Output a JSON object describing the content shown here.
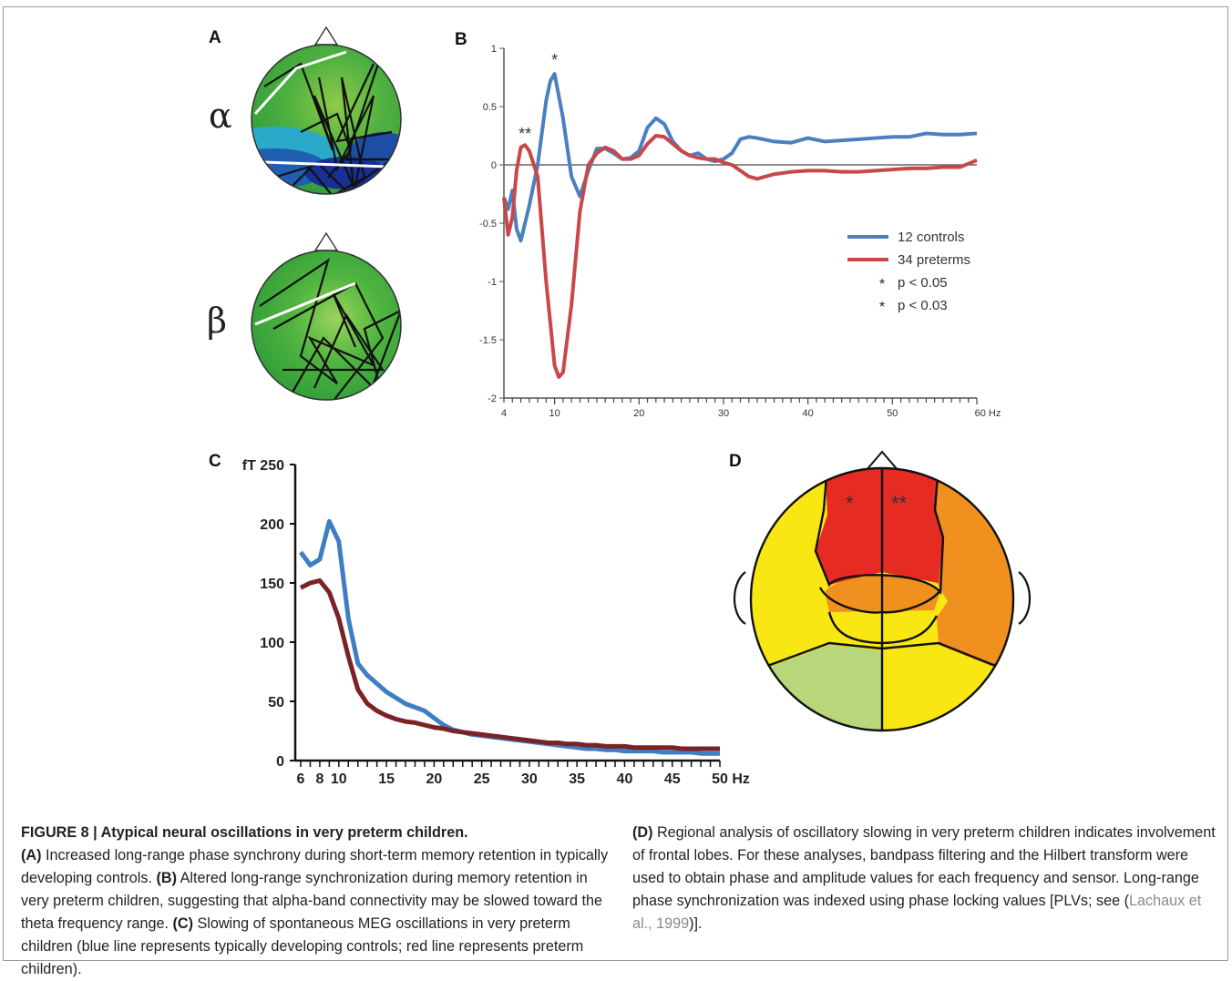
{
  "panels": {
    "a": {
      "letter": "A",
      "alpha": "α",
      "beta": "β"
    },
    "b": {
      "letter": "B"
    },
    "c": {
      "letter": "C"
    },
    "d": {
      "letter": "D",
      "left_star": "*",
      "right_star": "**"
    }
  },
  "colors": {
    "controls": "#4a80c0",
    "preterms": "#c8484a",
    "c_controls": "#3e7fc4",
    "c_preterms": "#7a2224",
    "red_region": "#e52b22",
    "orange_region": "#f0901e",
    "yellow_region": "#f8e712",
    "light_green_region": "#b8d67a"
  },
  "chart_data": [
    {
      "type": "line",
      "panel": "B",
      "x_ticks": [
        "4",
        "10",
        "20",
        "30",
        "40",
        "50",
        "60 Hz"
      ],
      "y_ticks": [
        "1",
        "0.5",
        "0",
        "-0.5",
        "-1",
        "-1.5",
        "-2"
      ],
      "xlim": [
        4,
        60
      ],
      "ylim": [
        -2,
        1
      ],
      "legend": [
        "12 controls",
        "34 preterms",
        "p < 0.05",
        "p < 0.03"
      ],
      "legend_marks": [
        "*",
        "*"
      ],
      "annotations": [
        {
          "x": 10,
          "y": 0.85,
          "text": "*"
        },
        {
          "x": 6.5,
          "y": 0.22,
          "text": "**"
        }
      ],
      "series": [
        {
          "name": "12 controls",
          "x": [
            4,
            4.5,
            5,
            5.5,
            6,
            7,
            8,
            9,
            9.5,
            10,
            11,
            12,
            13,
            14,
            15,
            16,
            17,
            18,
            19,
            20,
            21,
            22,
            23,
            24,
            25,
            26,
            27,
            28,
            29,
            30,
            31,
            32,
            33,
            34,
            36,
            38,
            40,
            42,
            44,
            46,
            48,
            50,
            52,
            54,
            56,
            58,
            60
          ],
          "values": [
            -0.28,
            -0.38,
            -0.22,
            -0.55,
            -0.65,
            -0.35,
            0.0,
            0.55,
            0.72,
            0.78,
            0.4,
            -0.1,
            -0.27,
            -0.05,
            0.14,
            0.14,
            0.1,
            0.05,
            0.06,
            0.12,
            0.32,
            0.4,
            0.35,
            0.2,
            0.12,
            0.08,
            0.1,
            0.05,
            0.03,
            0.05,
            0.1,
            0.22,
            0.24,
            0.23,
            0.2,
            0.19,
            0.23,
            0.2,
            0.21,
            0.22,
            0.23,
            0.24,
            0.24,
            0.27,
            0.26,
            0.26,
            0.27
          ]
        },
        {
          "name": "34 preterms",
          "x": [
            4,
            4.5,
            5,
            5.5,
            6,
            6.5,
            7,
            8,
            9,
            10,
            10.5,
            11,
            12,
            13,
            14,
            15,
            16,
            17,
            18,
            19,
            20,
            21,
            22,
            23,
            24,
            25,
            26,
            27,
            28,
            29,
            30,
            31,
            32,
            33,
            34,
            36,
            38,
            40,
            42,
            44,
            46,
            48,
            50,
            52,
            54,
            56,
            58,
            60
          ],
          "values": [
            -0.28,
            -0.6,
            -0.45,
            -0.05,
            0.15,
            0.17,
            0.12,
            -0.1,
            -1.0,
            -1.72,
            -1.82,
            -1.78,
            -1.2,
            -0.4,
            0.0,
            0.1,
            0.15,
            0.12,
            0.05,
            0.05,
            0.08,
            0.18,
            0.25,
            0.24,
            0.18,
            0.12,
            0.08,
            0.06,
            0.05,
            0.05,
            0.02,
            0.0,
            -0.05,
            -0.1,
            -0.12,
            -0.08,
            -0.06,
            -0.05,
            -0.05,
            -0.06,
            -0.06,
            -0.05,
            -0.04,
            -0.03,
            -0.03,
            -0.02,
            -0.02,
            0.04
          ]
        }
      ]
    },
    {
      "type": "line",
      "panel": "C",
      "x_ticks": [
        "6",
        "8",
        "10",
        "15",
        "20",
        "25",
        "30",
        "35",
        "40",
        "45",
        "50 Hz"
      ],
      "y_ticks": [
        "0",
        "50",
        "100",
        "150",
        "200",
        "fT 250"
      ],
      "xlim": [
        6,
        50
      ],
      "ylim": [
        0,
        250
      ],
      "series": [
        {
          "name": "controls (blue)",
          "x": [
            6,
            7,
            8,
            9,
            10,
            11,
            12,
            13,
            14,
            15,
            16,
            17,
            18,
            19,
            20,
            21,
            22,
            23,
            24,
            25,
            26,
            27,
            28,
            29,
            30,
            31,
            32,
            33,
            34,
            35,
            36,
            37,
            38,
            39,
            40,
            41,
            42,
            43,
            44,
            45,
            46,
            47,
            48,
            49,
            50
          ],
          "values": [
            176,
            165,
            170,
            202,
            185,
            120,
            82,
            72,
            65,
            58,
            53,
            48,
            45,
            42,
            36,
            30,
            26,
            24,
            22,
            21,
            20,
            19,
            18,
            17,
            16,
            15,
            14,
            13,
            12,
            11,
            10,
            10,
            9,
            9,
            8,
            8,
            8,
            8,
            7,
            7,
            7,
            7,
            6,
            6,
            6
          ]
        },
        {
          "name": "preterms (red)",
          "x": [
            6,
            7,
            8,
            9,
            10,
            11,
            12,
            13,
            14,
            15,
            16,
            17,
            18,
            19,
            20,
            21,
            22,
            23,
            24,
            25,
            26,
            27,
            28,
            29,
            30,
            31,
            32,
            33,
            34,
            35,
            36,
            37,
            38,
            39,
            40,
            41,
            42,
            43,
            44,
            45,
            46,
            47,
            48,
            49,
            50
          ],
          "values": [
            146,
            150,
            152,
            142,
            120,
            88,
            60,
            48,
            42,
            38,
            35,
            33,
            32,
            30,
            28,
            27,
            25,
            24,
            23,
            22,
            21,
            20,
            19,
            18,
            17,
            16,
            15,
            15,
            14,
            14,
            13,
            13,
            12,
            12,
            12,
            11,
            11,
            11,
            11,
            11,
            10,
            10,
            10,
            10,
            10
          ]
        }
      ]
    }
  ],
  "caption": {
    "title": "FIGURE 8 | Atypical neural oscillations in very preterm children.",
    "a_label": "(A)",
    "a_text": " Increased long-range phase synchrony during short-term memory retention in typically developing controls. ",
    "b_label": "(B)",
    "b_text": " Altered long-range synchronization during memory retention in very preterm children, suggesting that alpha-band connectivity may be slowed toward the theta frequency range. ",
    "c_label": "(C)",
    "c_text": " Slowing of spontaneous MEG oscillations in very preterm children (blue line represents typically developing controls; red line represents preterm children). ",
    "d_label": "(D)",
    "d_text": " Regional analysis of oscillatory slowing in very preterm children indicates involvement of frontal lobes. For these analyses, bandpass filtering and the Hilbert transform were used to obtain phase and amplitude values for each frequency and sensor. Long-range phase synchronization was indexed using phase locking values [PLVs; see (",
    "ref": "Lachaux et al., 1999",
    "end": ")]."
  }
}
